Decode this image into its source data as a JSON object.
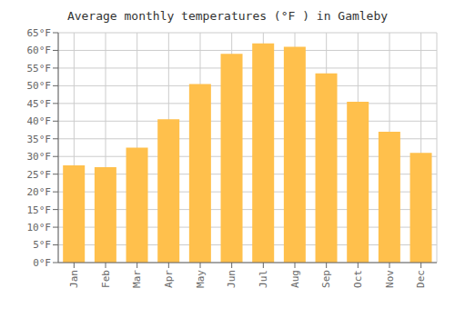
{
  "chart_data": {
    "type": "bar",
    "title": "Average monthly temperatures (°F ) in Gamleby",
    "categories": [
      "Jan",
      "Feb",
      "Mar",
      "Apr",
      "May",
      "Jun",
      "Jul",
      "Aug",
      "Sep",
      "Oct",
      "Nov",
      "Dec"
    ],
    "values": [
      27.5,
      27.0,
      32.5,
      40.5,
      50.5,
      59.0,
      62.0,
      61.0,
      53.5,
      45.5,
      37.0,
      31.0
    ],
    "color": "#FFC04C",
    "ylim": [
      0,
      65
    ],
    "yticks": [
      {
        "value": 0,
        "label": "0°F"
      },
      {
        "value": 5,
        "label": "5°F"
      },
      {
        "value": 10,
        "label": "10°F"
      },
      {
        "value": 15,
        "label": "15°F"
      },
      {
        "value": 20,
        "label": "20°F"
      },
      {
        "value": 25,
        "label": "25°F"
      },
      {
        "value": 30,
        "label": "30°F"
      },
      {
        "value": 35,
        "label": "35°F"
      },
      {
        "value": 40,
        "label": "40°F"
      },
      {
        "value": 45,
        "label": "45°F"
      },
      {
        "value": 50,
        "label": "50°F"
      },
      {
        "value": 55,
        "label": "55°F"
      },
      {
        "value": 60,
        "label": "60°F"
      },
      {
        "value": 65,
        "label": "65°F"
      }
    ],
    "grid": true
  }
}
